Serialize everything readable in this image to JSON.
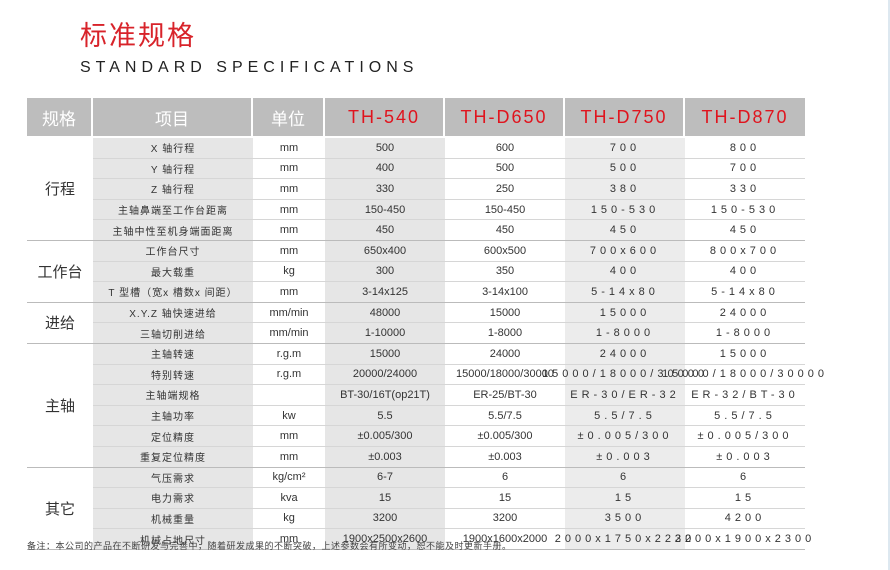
{
  "title": "标准规格",
  "subtitle": "STANDARD SPECIFICATIONS",
  "colors": {
    "accent": "#e0141e",
    "header_bg": "#bdbdbd",
    "stripe": "#e6e6e6"
  },
  "header": {
    "spec": "规格",
    "item": "项目",
    "unit": "单位",
    "models": [
      "TH-540",
      "TH-D650",
      "TH-D750",
      "TH-D870"
    ]
  },
  "groups": [
    {
      "name": "行程",
      "rows": [
        {
          "item": "X 轴行程",
          "unit": "mm",
          "values": [
            "500",
            "600",
            "700",
            "800"
          ]
        },
        {
          "item": "Y 轴行程",
          "unit": "mm",
          "values": [
            "400",
            "500",
            "500",
            "700"
          ]
        },
        {
          "item": "Z 轴行程",
          "unit": "mm",
          "values": [
            "330",
            "250",
            "380",
            "330"
          ]
        },
        {
          "item": "主轴鼻端至工作台距离",
          "unit": "mm",
          "values": [
            "150-450",
            "150-450",
            "150-530",
            "150-530"
          ]
        },
        {
          "item": "主轴中性至机身端面距离",
          "unit": "mm",
          "values": [
            "450",
            "450",
            "450",
            "450"
          ]
        }
      ]
    },
    {
      "name": "工作台",
      "rows": [
        {
          "item": "工作台尺寸",
          "unit": "mm",
          "values": [
            "650x400",
            "600x500",
            "700x600",
            "800x700"
          ]
        },
        {
          "item": "最大载重",
          "unit": "kg",
          "values": [
            "300",
            "350",
            "400",
            "400"
          ]
        },
        {
          "item": "T 型槽（宽x 槽数x 间距）",
          "unit": "mm",
          "values": [
            "3-14x125",
            "3-14x100",
            "5-14x80",
            "5-14x80"
          ]
        }
      ]
    },
    {
      "name": "进给",
      "rows": [
        {
          "item": "X.Y.Z 轴快速进给",
          "unit": "mm/min",
          "values": [
            "48000",
            "15000",
            "15000",
            "24000"
          ]
        },
        {
          "item": "三轴切削进给",
          "unit": "mm/min",
          "values": [
            "1-10000",
            "1-8000",
            "1-8000",
            "1-8000"
          ]
        }
      ]
    },
    {
      "name": "主轴",
      "rows": [
        {
          "item": "主轴转速",
          "unit": "r.g.m",
          "values": [
            "15000",
            "24000",
            "24000",
            "15000"
          ]
        },
        {
          "item": "特别转速",
          "unit": "r.g.m",
          "values": [
            "20000/24000",
            "15000/18000/30000",
            "15000/18000/30000",
            "15000/18000/30000"
          ]
        },
        {
          "item": "主轴端规格",
          "unit": "",
          "values": [
            "BT-30/16T(op21T)",
            "ER-25/BT-30",
            "ER-30/ER-32",
            "ER-32/BT-30"
          ]
        },
        {
          "item": "主轴功率",
          "unit": "kw",
          "values": [
            "5.5",
            "5.5/7.5",
            "5.5/7.5",
            "5.5/7.5"
          ]
        },
        {
          "item": "定位精度",
          "unit": "mm",
          "values": [
            "±0.005/300",
            "±0.005/300",
            "±0.005/300",
            "±0.005/300"
          ]
        },
        {
          "item": "重复定位精度",
          "unit": "mm",
          "values": [
            "±0.003",
            "±0.003",
            "±0.003",
            "±0.003"
          ]
        }
      ]
    },
    {
      "name": "其它",
      "rows": [
        {
          "item": "气压需求",
          "unit": "kg/cm²",
          "values": [
            "6-7",
            "6",
            "6",
            "6"
          ]
        },
        {
          "item": "电力需求",
          "unit": "kva",
          "values": [
            "15",
            "15",
            "15",
            "15"
          ]
        },
        {
          "item": "机械重量",
          "unit": "kg",
          "values": [
            "3200",
            "3200",
            "3500",
            "4200"
          ]
        },
        {
          "item": "机械占地尺寸",
          "unit": "mm",
          "values": [
            "1900x2500x2600",
            "1900x1600x2000",
            "2000x1750x2230",
            "2200x1900x2300"
          ]
        }
      ]
    }
  ],
  "note": "备注：本公司的产品在不断研发与完善中，随着研发成果的不断突破，上述参数会有所变动，恕不能及时更新手册。"
}
